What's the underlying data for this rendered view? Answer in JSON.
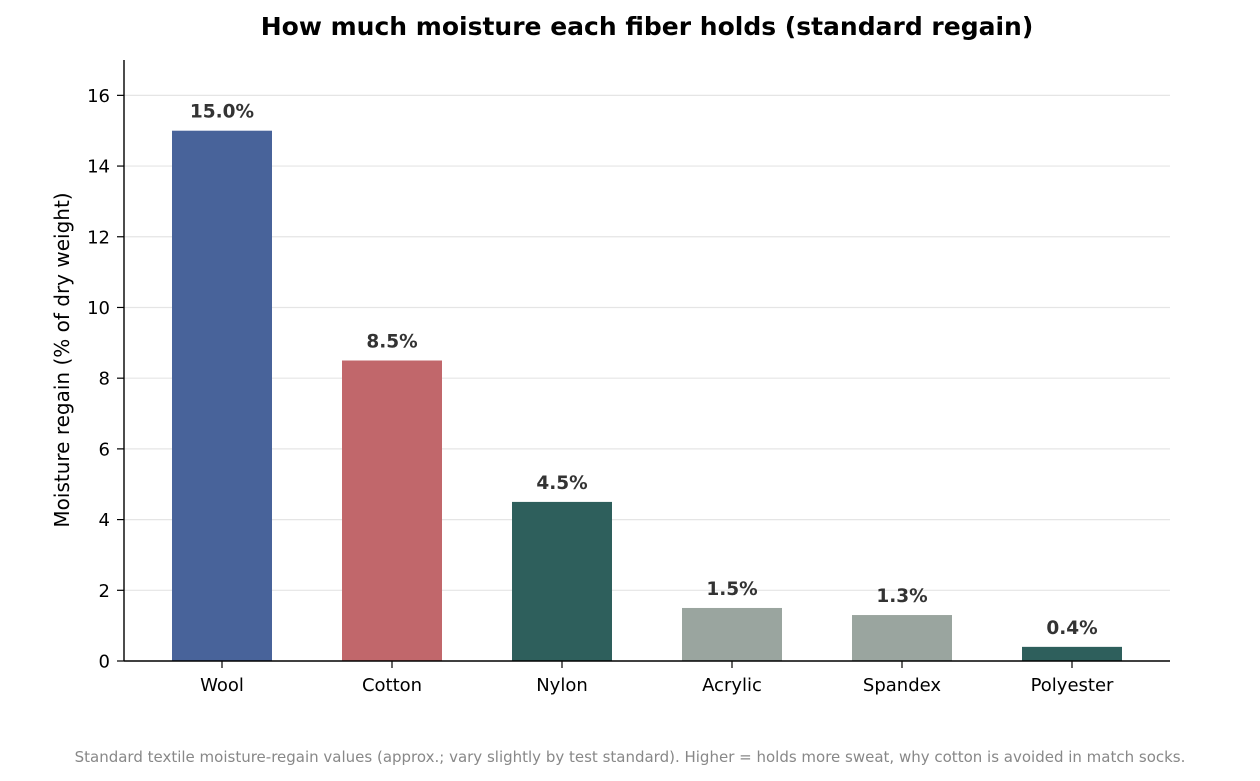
{
  "chart_data": {
    "type": "bar",
    "title": "How much moisture each fiber holds (standard regain)",
    "xlabel": "",
    "ylabel": "Moisture regain (% of dry weight)",
    "categories": [
      "Wool",
      "Cotton",
      "Nylon",
      "Acrylic",
      "Spandex",
      "Polyester"
    ],
    "values": [
      15.0,
      8.5,
      4.5,
      1.5,
      1.3,
      0.4
    ],
    "value_labels": [
      "15.0%",
      "8.5%",
      "4.5%",
      "1.5%",
      "1.3%",
      "0.4%"
    ],
    "bar_colors": [
      "#48639a",
      "#c1676b",
      "#2e5f5c",
      "#9aa59f",
      "#9aa59f",
      "#2e5f5c"
    ],
    "ylim": [
      0,
      17
    ],
    "yticks": [
      0,
      2,
      4,
      6,
      8,
      10,
      12,
      14,
      16
    ],
    "ytick_labels": [
      "0",
      "2",
      "4",
      "6",
      "8",
      "10",
      "12",
      "14",
      "16"
    ],
    "grid": "horizontal",
    "grid_color": "#e5e5e5",
    "legend": "none",
    "footnote": "Standard textile moisture-regain values (approx.; vary slightly by test standard). Higher = holds more sweat, why cotton is avoided in match socks."
  }
}
